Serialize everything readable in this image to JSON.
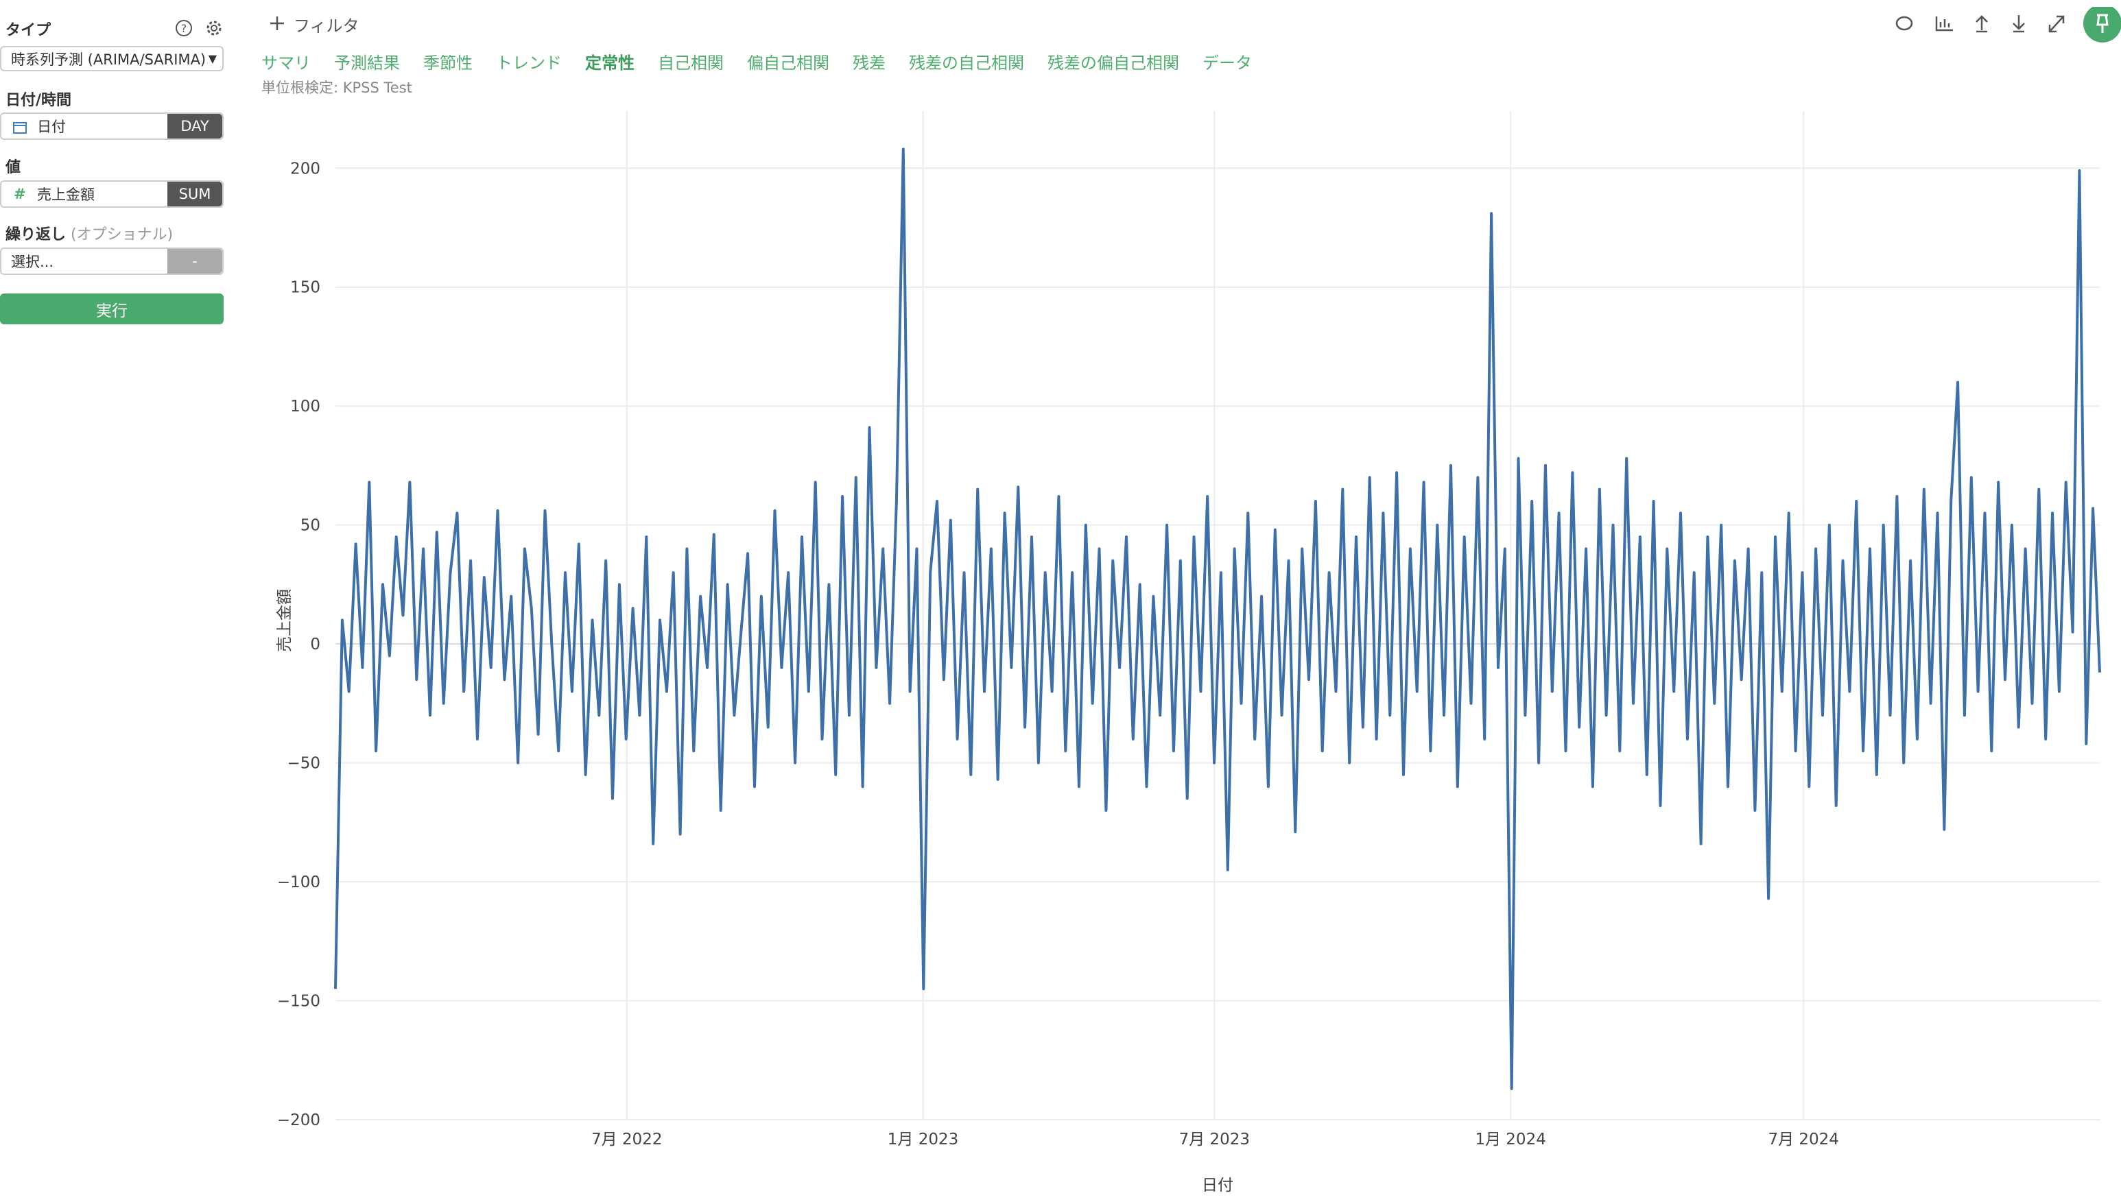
{
  "sidebar": {
    "type_label": "タイプ",
    "type_value": "時系列予測 (ARIMA/SARIMA)",
    "date_label": "日付/時間",
    "date_field": "日付",
    "date_unit": "DAY",
    "value_label": "値",
    "value_field": "売上金額",
    "value_agg": "SUM",
    "repeat_label": "繰り返し",
    "repeat_optional": "(オプショナル)",
    "repeat_placeholder": "選択...",
    "repeat_button": "-",
    "run_button": "実行"
  },
  "toolbar": {
    "filter": "フィルタ"
  },
  "tabs": [
    "サマリ",
    "予測結果",
    "季節性",
    "トレンド",
    "定常性",
    "自己相関",
    "偏自己相関",
    "残差",
    "残差の自己相関",
    "残差の偏自己相関",
    "データ"
  ],
  "active_tab": 4,
  "chart_data": {
    "type": "line",
    "subtitle": "単位根検定: KPSS Test",
    "x_label": "日付",
    "y_label": "売上金額",
    "color": "#3d6fa9",
    "grid": true,
    "xlim": [
      "2022-01",
      "2025-01"
    ],
    "xticks": [
      {
        "value": "2022-07",
        "label": "7月 2022"
      },
      {
        "value": "2023-01",
        "label": "1月 2023"
      },
      {
        "value": "2023-07",
        "label": "7月 2023"
      },
      {
        "value": "2024-01",
        "label": "1月 2024"
      },
      {
        "value": "2024-07",
        "label": "7月 2024"
      }
    ],
    "ylim": [
      -200,
      224
    ],
    "yticks": [
      {
        "value": -200,
        "label": "−200"
      },
      {
        "value": -150,
        "label": "−150"
      },
      {
        "value": -100,
        "label": "−100"
      },
      {
        "value": -50,
        "label": "−50"
      },
      0,
      50,
      100,
      150,
      200
    ],
    "values": [
      -145,
      10,
      -20,
      42,
      -10,
      68,
      -45,
      25,
      -5,
      45,
      12,
      68,
      -15,
      40,
      -30,
      47,
      -25,
      30,
      55,
      -20,
      35,
      -40,
      28,
      -10,
      56,
      -15,
      20,
      -50,
      40,
      15,
      -38,
      56,
      0,
      -45,
      30,
      -20,
      42,
      -55,
      10,
      -30,
      35,
      -65,
      25,
      -40,
      15,
      -30,
      45,
      -84,
      10,
      -20,
      30,
      -80,
      40,
      -45,
      20,
      -10,
      46,
      -70,
      25,
      -30,
      5,
      38,
      -60,
      20,
      -35,
      56,
      -10,
      30,
      -50,
      45,
      -20,
      68,
      -40,
      25,
      -55,
      62,
      -30,
      70,
      -60,
      91,
      -10,
      40,
      -25,
      60,
      208,
      -20,
      40,
      -145,
      30,
      60,
      -15,
      52,
      -40,
      30,
      -55,
      65,
      -20,
      40,
      -57,
      55,
      -10,
      66,
      -35,
      45,
      -50,
      30,
      -20,
      62,
      -45,
      30,
      -60,
      50,
      -25,
      40,
      -70,
      35,
      -10,
      45,
      -40,
      25,
      -60,
      20,
      -30,
      50,
      -45,
      35,
      -65,
      45,
      -20,
      62,
      -50,
      30,
      -95,
      40,
      -25,
      55,
      -40,
      20,
      -60,
      48,
      -30,
      35,
      -79,
      40,
      -15,
      60,
      -45,
      30,
      -20,
      65,
      -50,
      45,
      -35,
      70,
      -40,
      55,
      -30,
      72,
      -55,
      40,
      -20,
      68,
      -45,
      50,
      -30,
      75,
      -60,
      45,
      -25,
      70,
      -40,
      181,
      -10,
      40,
      -187,
      78,
      -30,
      60,
      -50,
      75,
      -20,
      55,
      -45,
      72,
      -35,
      40,
      -60,
      65,
      -30,
      50,
      -45,
      78,
      -25,
      45,
      -55,
      60,
      -68,
      40,
      -20,
      55,
      -40,
      30,
      -84,
      45,
      -25,
      50,
      -60,
      35,
      -15,
      40,
      -70,
      30,
      -107,
      45,
      -20,
      55,
      -45,
      30,
      -60,
      40,
      -30,
      50,
      -68,
      35,
      -20,
      60,
      -45,
      40,
      -55,
      50,
      -30,
      62,
      -50,
      35,
      -40,
      65,
      -25,
      55,
      -78,
      60,
      110,
      -30,
      70,
      -20,
      55,
      -45,
      68,
      -15,
      50,
      -35,
      40,
      -25,
      65,
      -40,
      55,
      -20,
      68,
      5,
      199,
      -42,
      57,
      -12
    ]
  }
}
